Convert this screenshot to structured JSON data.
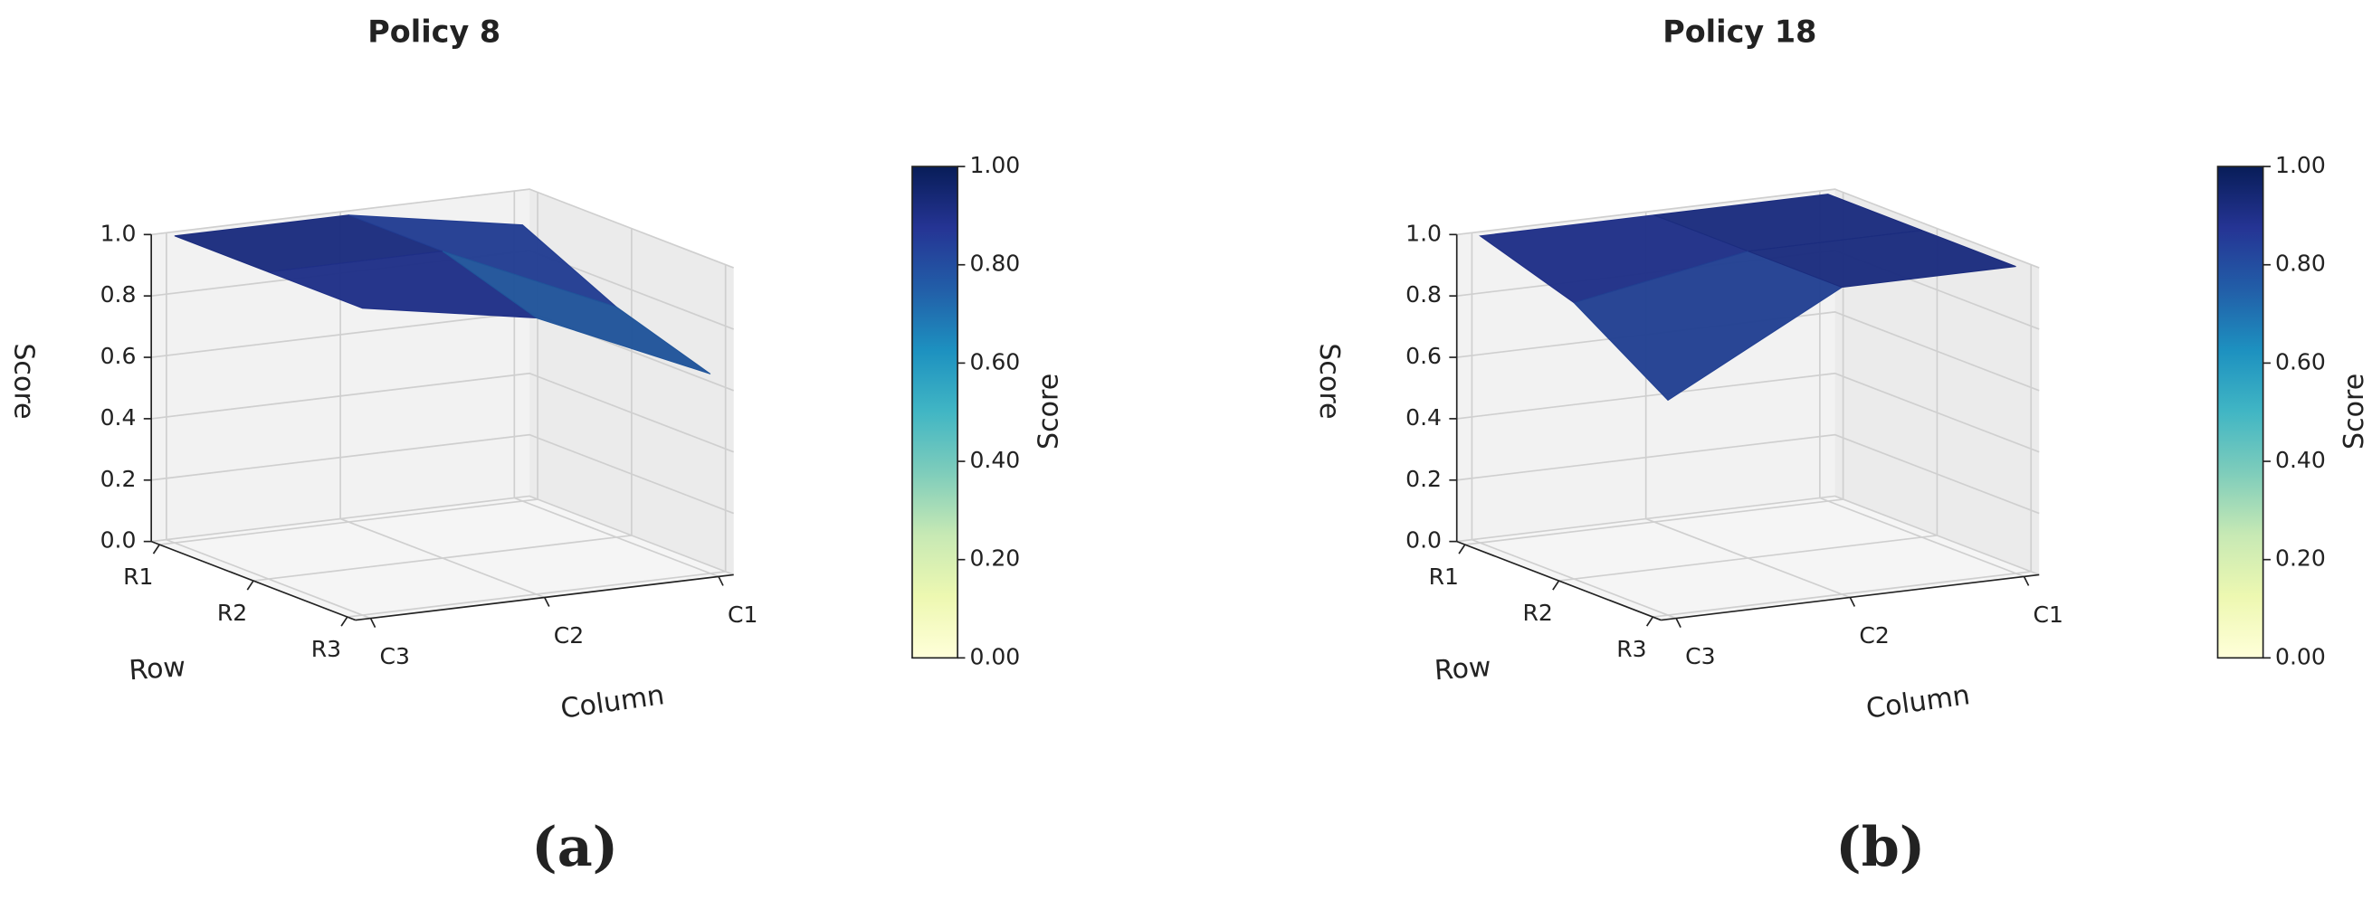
{
  "chart_data": [
    {
      "type": "surface",
      "title": "Policy 8",
      "x_label": "Column",
      "y_label": "Row",
      "z_label": "Score",
      "x_categories": [
        "C1",
        "C2",
        "C3"
      ],
      "y_categories": [
        "R1",
        "R2",
        "R3"
      ],
      "z": [
        [
          0.9,
          1.0,
          1.0
        ],
        [
          0.75,
          1.0,
          1.0
        ],
        [
          0.65,
          0.9,
          1.0
        ]
      ],
      "zlim": [
        0,
        1
      ],
      "zticks": [
        {
          "value": 0,
          "label": "0.0"
        },
        0.2,
        0.4,
        0.6,
        0.8,
        {
          "value": 1,
          "label": "1.0"
        }
      ],
      "colormap": "YlGnBu",
      "colorbar": {
        "label": "Score",
        "lim": [
          0,
          1
        ],
        "ticks": [
          {
            "value": 0,
            "label": "0.00"
          },
          {
            "value": 0.2,
            "label": "0.20"
          },
          {
            "value": 0.4,
            "label": "0.40"
          },
          {
            "value": 0.6,
            "label": "0.60"
          },
          {
            "value": 0.8,
            "label": "0.80"
          },
          {
            "value": 1,
            "label": "1.00"
          }
        ]
      },
      "panel_label": "(a)"
    },
    {
      "type": "surface",
      "title": "Policy 18",
      "x_label": "Column",
      "y_label": "Row",
      "z_label": "Score",
      "x_categories": [
        "C1",
        "C2",
        "C3"
      ],
      "y_categories": [
        "R1",
        "R2",
        "R3"
      ],
      "z": [
        [
          1.0,
          1.0,
          1.0
        ],
        [
          1.0,
          1.0,
          0.9
        ],
        [
          1.0,
          1.0,
          0.7
        ]
      ],
      "zlim": [
        0,
        1
      ],
      "zticks": [
        {
          "value": 0,
          "label": "0.0"
        },
        0.2,
        0.4,
        0.6,
        0.8,
        {
          "value": 1,
          "label": "1.0"
        }
      ],
      "colormap": "YlGnBu",
      "colorbar": {
        "label": "Score",
        "lim": [
          0,
          1
        ],
        "ticks": [
          {
            "value": 0,
            "label": "0.00"
          },
          {
            "value": 0.2,
            "label": "0.20"
          },
          {
            "value": 0.4,
            "label": "0.40"
          },
          {
            "value": 0.6,
            "label": "0.60"
          },
          {
            "value": 0.8,
            "label": "0.80"
          },
          {
            "value": 1,
            "label": "1.00"
          }
        ]
      },
      "panel_label": "(b)"
    }
  ]
}
